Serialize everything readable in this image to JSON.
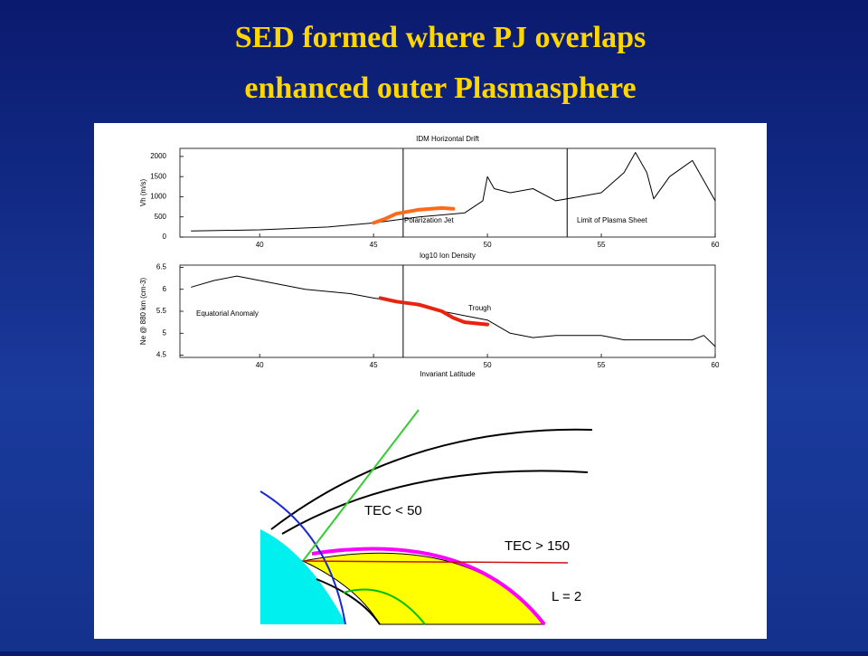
{
  "slide": {
    "title_lines": [
      "SED formed where PJ overlaps",
      "enhanced outer Plasmasphere"
    ]
  },
  "chart_data": [
    {
      "type": "line",
      "title": "IDM Horizontal Drift",
      "ylabel": "Vh (m/s)",
      "xlim": [
        36.5,
        60
      ],
      "ylim": [
        0,
        2200
      ],
      "xticks": [
        40,
        45,
        50,
        55,
        60
      ],
      "yticks": [
        0,
        500,
        1000,
        1500,
        2000
      ],
      "vlines": [
        46.3,
        53.5
      ],
      "annotations": [
        "Polarization Jet",
        "Limit of Plasma Sheet"
      ],
      "series": [
        {
          "color": "#000000",
          "x": [
            37,
            40,
            43,
            45,
            47,
            49,
            49.8,
            50,
            50.3,
            51,
            52,
            53,
            54,
            55,
            56,
            56.5,
            57,
            57.3,
            58,
            59,
            59.5,
            60
          ],
          "values": [
            150,
            180,
            250,
            350,
            500,
            600,
            900,
            1500,
            1200,
            1100,
            1200,
            900,
            1000,
            1100,
            1600,
            2100,
            1600,
            950,
            1500,
            1900,
            1400,
            900
          ]
        },
        {
          "color": "#ff6a1a",
          "x": [
            45,
            45.5,
            46,
            47,
            48,
            48.5
          ],
          "values": [
            350,
            450,
            580,
            680,
            720,
            700
          ]
        }
      ]
    },
    {
      "type": "line",
      "title": "log10 Ion Density",
      "ylabel": "Ne @ 880 km (cm-3)",
      "xlabel": "Invariant Latitude",
      "xlim": [
        36.5,
        60
      ],
      "ylim": [
        4.45,
        6.55
      ],
      "xticks": [
        40,
        45,
        50,
        55,
        60
      ],
      "yticks": [
        4.5,
        5,
        5.5,
        6,
        6.5
      ],
      "vlines": [
        46.3
      ],
      "annotations": [
        "Equatorial Anomaly",
        "Trough"
      ],
      "series": [
        {
          "color": "#000000",
          "x": [
            37,
            38,
            39,
            40,
            42,
            44,
            45,
            46.3,
            48,
            50,
            51,
            52,
            53,
            55,
            56,
            58,
            59,
            59.5,
            60
          ],
          "values": [
            6.05,
            6.2,
            6.3,
            6.2,
            6.0,
            5.9,
            5.8,
            5.7,
            5.5,
            5.3,
            5.0,
            4.9,
            4.95,
            4.95,
            4.85,
            4.85,
            4.85,
            4.95,
            4.7
          ]
        },
        {
          "color": "#e8230e",
          "x": [
            45.3,
            46,
            47,
            48,
            48.5,
            49,
            50
          ],
          "values": [
            5.8,
            5.72,
            5.65,
            5.5,
            5.35,
            5.25,
            5.2
          ]
        }
      ]
    }
  ],
  "diagram": {
    "labels": [
      "TEC < 50",
      "TEC > 150",
      "L = 2"
    ]
  }
}
